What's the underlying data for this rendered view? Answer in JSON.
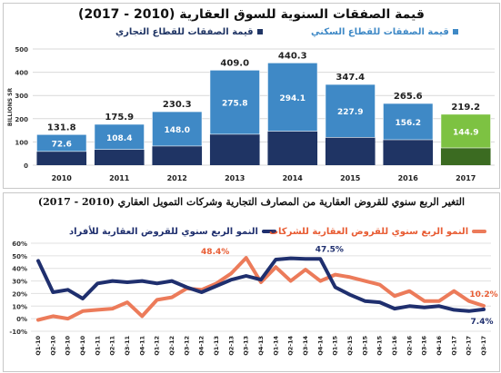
{
  "colors": {
    "residential": "#3f89c6",
    "commercial": "#1f3464",
    "highlight_upper": "#7dc242",
    "highlight_lower": "#3b6b21",
    "individuals_line": "#1f2f6e",
    "companies_line": "#ec7b5a",
    "companies_label": "#e85c33"
  },
  "top_chart": {
    "title": "قيمة الصفقات السنوية للسوق العقارية (2010 - 2017)",
    "legend_residential": "قيمة الصفقات للقطاع السكني",
    "legend_commercial": "قيمة الصفقات للقطاع التجاري"
  },
  "bottom_chart": {
    "title": "التغير الربع سنوي للقروض العقارية من المصارف التجارية وشركات التمويل العقاري (2010 - 2017)",
    "legend_individuals": "النمو الربع سنوي للقروض العقارية للأفراد",
    "legend_companies": "النمو الربع سنوي للقروض العقارية للشركات"
  },
  "chart_data": [
    {
      "type": "bar",
      "title": "قيمة الصفقات السنوية للسوق العقارية (2010 - 2017)",
      "ylabel": "BILLIONS SR",
      "ylim": [
        0,
        500
      ],
      "yticks": [
        0,
        100,
        200,
        300,
        400,
        500
      ],
      "grid": true,
      "legend": "top",
      "stacked": true,
      "categories": [
        "2010",
        "2011",
        "2012",
        "2013",
        "2014",
        "2015",
        "2016",
        "2017"
      ],
      "series": [
        {
          "name": "قيمة الصفقات للقطاع التجاري",
          "values": [
            59.2,
            67.5,
            82.3,
            133.2,
            146.2,
            119.6,
            109.4,
            74.3
          ]
        },
        {
          "name": "قيمة الصفقات للقطاع السكني",
          "values": [
            72.6,
            108.4,
            148.0,
            275.8,
            294.1,
            227.9,
            156.2,
            144.9
          ]
        }
      ],
      "totals": [
        131.8,
        175.9,
        230.3,
        409.0,
        440.3,
        347.4,
        265.6,
        219.2
      ]
    },
    {
      "type": "line",
      "title": "التغير الربع سنوي للقروض العقارية من المصارف التجارية وشركات التمويل العقاري (2010 - 2017)",
      "ylim": [
        -10,
        60
      ],
      "yticks": [
        "60%",
        "50%",
        "40%",
        "30%",
        "20%",
        "10%",
        "0%",
        "-10%"
      ],
      "grid": true,
      "legend": "top",
      "x": [
        "Q1-10",
        "Q2-10",
        "Q3-10",
        "Q4-10",
        "Q1-11",
        "Q2-11",
        "Q3-11",
        "Q4-11",
        "Q1-12",
        "Q2-12",
        "Q3-12",
        "Q4-12",
        "Q1-13",
        "Q2-13",
        "Q3-13",
        "Q4-13",
        "Q1-14",
        "Q2-14",
        "Q3-14",
        "Q4-14",
        "Q1-15",
        "Q2-15",
        "Q3-15",
        "Q4-15",
        "Q1-16",
        "Q2-16",
        "Q3-16",
        "Q4-16",
        "Q1-17",
        "Q2-17",
        "Q3-17"
      ],
      "series": [
        {
          "name": "النمو الربع سنوي للقروض العقارية للأفراد",
          "values": [
            46,
            21,
            23,
            16,
            28,
            30,
            29,
            30,
            28,
            30,
            25,
            21,
            26,
            31,
            34,
            31,
            47,
            48,
            47.5,
            47.5,
            25,
            19,
            14,
            13,
            8,
            10,
            9,
            10,
            7,
            6,
            7.4
          ]
        },
        {
          "name": "النمو الربع سنوي للقروض العقارية للشركات",
          "values": [
            -1,
            2,
            0,
            6,
            7,
            8,
            13,
            2,
            15,
            17,
            24,
            23,
            28,
            36,
            48.4,
            29,
            41,
            30,
            39,
            30,
            35,
            33,
            30,
            27,
            18,
            22,
            14,
            14,
            22,
            14,
            10.2
          ]
        }
      ],
      "annotations": [
        "48.4%",
        "47.5%",
        "10.2%",
        "7.4%"
      ]
    }
  ]
}
